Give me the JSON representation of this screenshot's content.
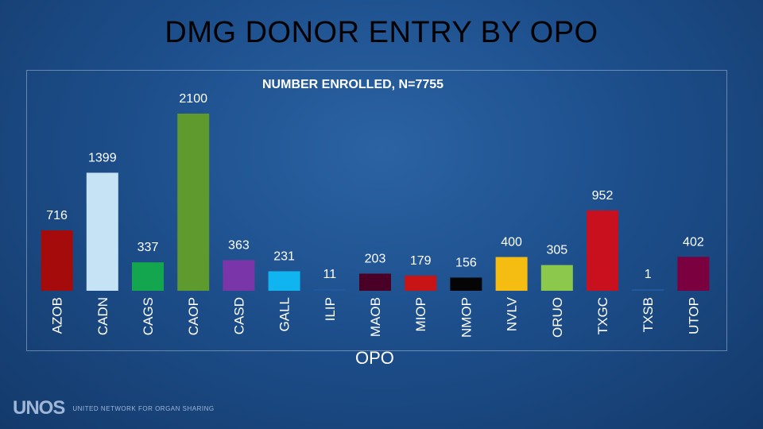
{
  "title": "DMG DONOR ENTRY BY OPO",
  "chart_data": {
    "type": "bar",
    "title": "NUMBER ENROLLED, N=7755",
    "xlabel": "OPO",
    "ylabel": "",
    "ylim": [
      0,
      2100
    ],
    "grid": false,
    "categories": [
      "AZOB",
      "CADN",
      "CAGS",
      "CAOP",
      "CASD",
      "GALL",
      "ILIP",
      "MAOB",
      "MIOP",
      "NMOP",
      "NVLV",
      "ORUO",
      "TXGC",
      "TXSB",
      "UTOP"
    ],
    "values": [
      716,
      1399,
      337,
      2100,
      363,
      231,
      11,
      203,
      179,
      156,
      400,
      305,
      952,
      1,
      402
    ],
    "colors": [
      "#a50b0b",
      "#c6e2f5",
      "#14a64e",
      "#5e9a2e",
      "#7a35a8",
      "#10b5f0",
      "#1f5aa0",
      "#4a0026",
      "#c81414",
      "#050505",
      "#f5bd12",
      "#8cc84b",
      "#c8101e",
      "#1f5aa0",
      "#7a0040"
    ],
    "data_labels": [
      "716",
      "1399",
      "337",
      "2100",
      "363",
      "231",
      "11",
      "203",
      "179",
      "156",
      "400",
      "305",
      "952",
      "1",
      "402"
    ]
  },
  "footer": {
    "logo_mark": "UNOS",
    "logo_text": "UNITED NETWORK FOR ORGAN SHARING"
  }
}
